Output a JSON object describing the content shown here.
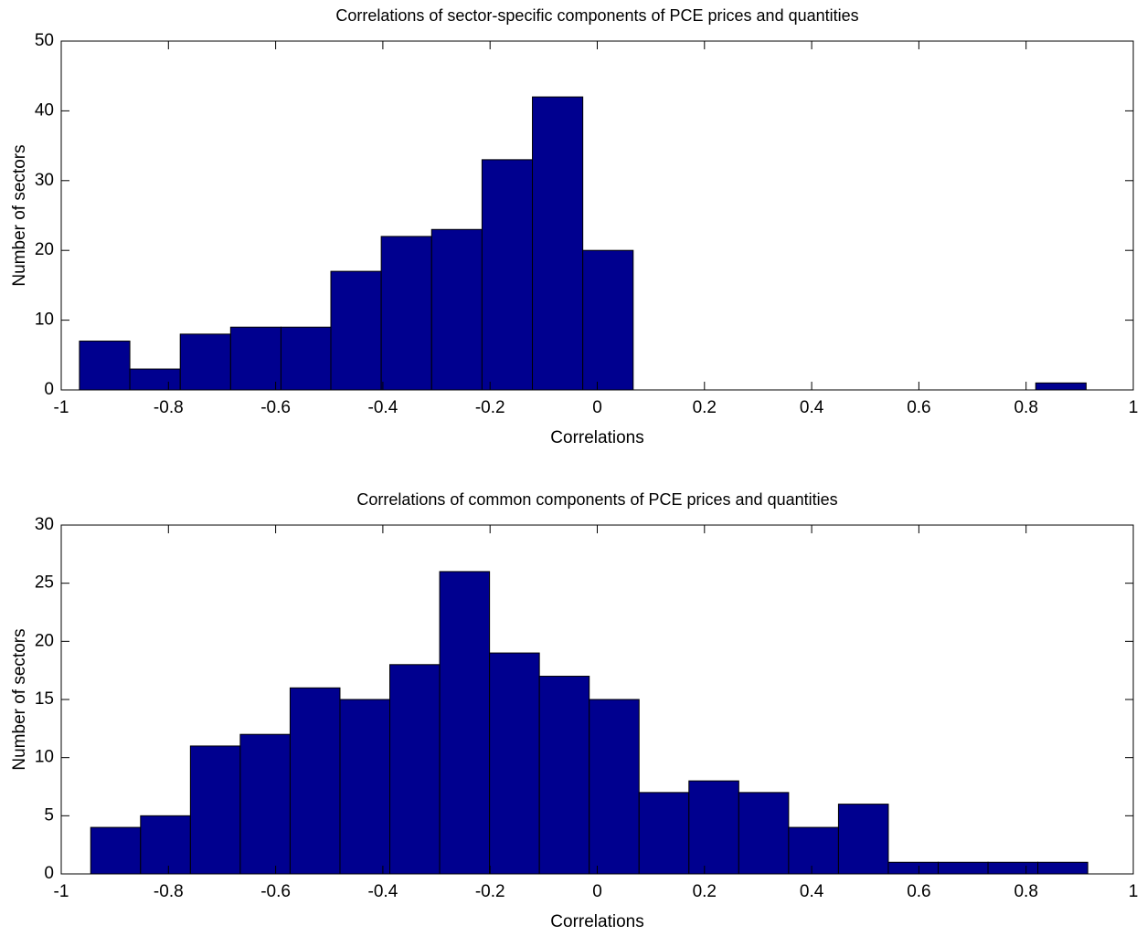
{
  "chart_data": [
    {
      "type": "histogram",
      "title": "Correlations of sector-specific components of PCE prices and quantities",
      "xlabel": "Correlations",
      "ylabel": "Number of sectors",
      "color": "#00008f",
      "grid": false,
      "bins": [
        -0.966,
        -0.872,
        -0.778,
        -0.684,
        -0.59,
        -0.497,
        -0.403,
        -0.309,
        -0.215,
        -0.121,
        -0.027,
        0.067,
        0.161,
        0.255,
        0.349,
        0.442,
        0.536,
        0.63,
        0.724,
        0.818,
        0.912
      ],
      "values": [
        7,
        3,
        8,
        9,
        9,
        17,
        22,
        23,
        33,
        42,
        20,
        0,
        0,
        0,
        0,
        0,
        0,
        0,
        0,
        1
      ],
      "xlim": [
        -1,
        1
      ],
      "xticks": [
        -1,
        -0.8,
        -0.6,
        -0.4,
        -0.2,
        0,
        0.2,
        0.4,
        0.6,
        0.8,
        1
      ],
      "ylim": [
        0,
        50
      ],
      "yticks": [
        0,
        10,
        20,
        30,
        40,
        50
      ]
    },
    {
      "type": "histogram",
      "title": "Correlations of common components of PCE prices and quantities",
      "xlabel": "Correlations",
      "ylabel": "Number of sectors",
      "color": "#00008f",
      "grid": false,
      "bins": [
        -0.945,
        -0.852,
        -0.759,
        -0.666,
        -0.573,
        -0.48,
        -0.387,
        -0.294,
        -0.201,
        -0.108,
        -0.015,
        0.078,
        0.171,
        0.264,
        0.357,
        0.45,
        0.543,
        0.636,
        0.729,
        0.822,
        0.915
      ],
      "values": [
        4,
        5,
        11,
        12,
        16,
        15,
        18,
        26,
        19,
        17,
        15,
        7,
        8,
        7,
        4,
        6,
        1,
        1,
        1,
        1
      ],
      "xlim": [
        -1,
        1
      ],
      "xticks": [
        -1,
        -0.8,
        -0.6,
        -0.4,
        -0.2,
        0,
        0.2,
        0.4,
        0.6,
        0.8,
        1
      ],
      "ylim": [
        0,
        30
      ],
      "yticks": [
        0,
        5,
        10,
        15,
        20,
        25,
        30
      ]
    }
  ]
}
